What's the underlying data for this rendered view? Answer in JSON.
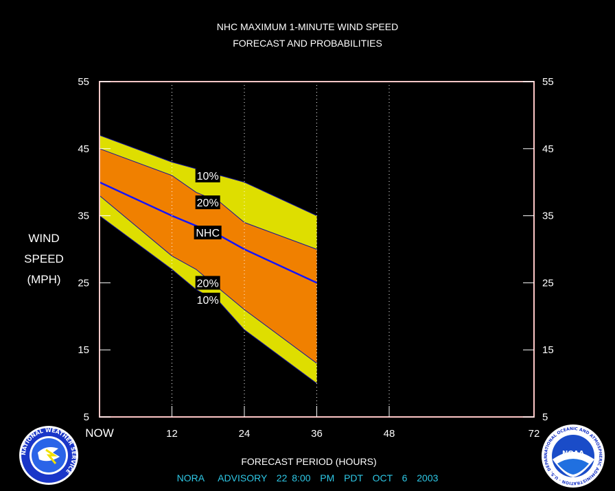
{
  "title_line1": "NHC MAXIMUM 1-MINUTE WIND SPEED",
  "title_line2": "FORECAST AND PROBABILITIES",
  "ylabel": [
    "WIND",
    "SPEED",
    "(MPH)"
  ],
  "xlabel": "FORECAST PERIOD (HOURS)",
  "advisory": "NORA   ADVISORY  22 8:00  PM  PDT  OCT  6  2003",
  "logos": {
    "left": "nws-logo",
    "left_text": "NATIONAL WEATHER SERVICE",
    "right": "noaa-logo",
    "right_text": "NATIONAL OCEANIC AND ATMOSPHERIC ADMINISTRATION · U.S. DEPARTMENT OF COMMERCE",
    "right_center": "NOAA"
  },
  "colors": {
    "band10": "#dede00",
    "band20": "#f08000",
    "nhc_line": "#1414ff",
    "frame": "#ffc8c8",
    "advisory": "#2ec8e6"
  },
  "chart_data": {
    "type": "area",
    "x": [
      0,
      12,
      36
    ],
    "xlim": [
      0,
      72
    ],
    "ylim": [
      5,
      55
    ],
    "x_ticks": [
      0,
      12,
      24,
      36,
      48,
      72
    ],
    "x_tick_labels": [
      "NOW",
      "12",
      "24",
      "36",
      "48",
      "72"
    ],
    "y_ticks": [
      5,
      15,
      25,
      35,
      45,
      55
    ],
    "y_tick_labels": [
      "5",
      "15",
      "25",
      "35",
      "45",
      "55"
    ],
    "vertical_gridlines": [
      12,
      24,
      36,
      48
    ],
    "series": [
      {
        "name": "10%",
        "x": [
          0,
          12,
          16,
          20,
          24,
          36
        ],
        "values": [
          47,
          43,
          42,
          41,
          40,
          35
        ]
      },
      {
        "name": "20%",
        "x": [
          0,
          12,
          16,
          20,
          24,
          36
        ],
        "values": [
          45,
          41,
          38.5,
          37,
          34,
          30
        ]
      },
      {
        "name": "NHC",
        "x": [
          0,
          12,
          16,
          20,
          24,
          36
        ],
        "values": [
          40,
          35,
          33.5,
          32,
          30,
          25
        ]
      },
      {
        "name": "20%",
        "x": [
          0,
          12,
          16,
          20,
          24,
          36
        ],
        "values": [
          38,
          29,
          27,
          24,
          21,
          13
        ]
      },
      {
        "name": "10%",
        "x": [
          0,
          12,
          16,
          20,
          24,
          36
        ],
        "values": [
          35,
          27,
          24,
          22,
          18,
          10
        ]
      }
    ],
    "labels": [
      {
        "text": "10%",
        "x": 16,
        "y": 41
      },
      {
        "text": "20%",
        "x": 16,
        "y": 37
      },
      {
        "text": "NHC",
        "x": 16,
        "y": 32.5
      },
      {
        "text": "20%",
        "x": 16,
        "y": 25
      },
      {
        "text": "10%",
        "x": 16,
        "y": 22.5
      }
    ]
  }
}
